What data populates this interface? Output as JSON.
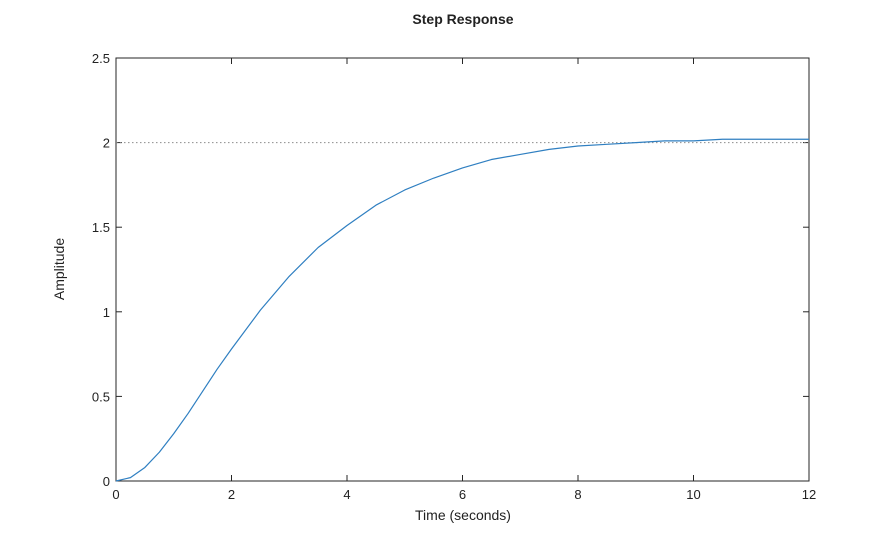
{
  "chart_data": {
    "type": "line",
    "title": "Step Response",
    "xlabel": "Time (seconds)",
    "ylabel": "Amplitude",
    "xlim": [
      0,
      12
    ],
    "ylim": [
      0,
      2.5
    ],
    "xticks": [
      0,
      2,
      4,
      6,
      8,
      10,
      12
    ],
    "yticks": [
      0,
      0.5,
      1,
      1.5,
      2,
      2.5
    ],
    "xtick_labels": [
      "0",
      "2",
      "4",
      "6",
      "8",
      "10",
      "12"
    ],
    "ytick_labels": [
      "0",
      "0.5",
      "1",
      "1.5",
      "2",
      "2.5"
    ],
    "grid": false,
    "reference_line": {
      "y": 2,
      "style": "dotted"
    },
    "series": [
      {
        "x": [
          0,
          0.25,
          0.5,
          0.75,
          1,
          1.25,
          1.5,
          1.75,
          2,
          2.5,
          3,
          3.5,
          4,
          4.5,
          5,
          5.5,
          6,
          6.5,
          7,
          7.5,
          8,
          8.5,
          9,
          9.5,
          10,
          10.5,
          11,
          11.5,
          12
        ],
        "values": [
          0,
          0.02,
          0.08,
          0.17,
          0.28,
          0.4,
          0.53,
          0.66,
          0.78,
          1.01,
          1.21,
          1.38,
          1.51,
          1.63,
          1.72,
          1.79,
          1.85,
          1.9,
          1.93,
          1.96,
          1.98,
          1.99,
          2.0,
          2.01,
          2.01,
          2.02,
          2.02,
          2.02,
          2.02
        ]
      }
    ],
    "colors": {
      "line": "#2f7fc1",
      "axes": "#262626",
      "reference": "#8c8c8c"
    }
  }
}
